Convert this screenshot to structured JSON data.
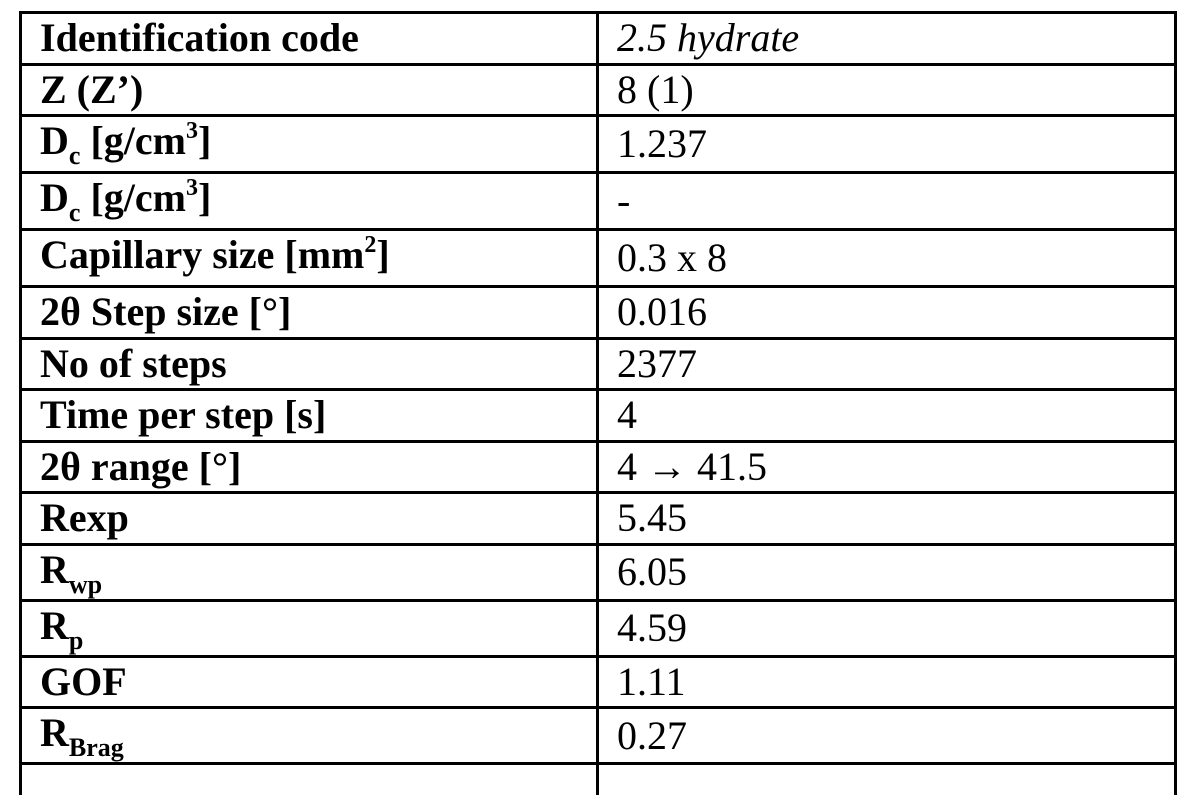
{
  "table": {
    "rows": [
      {
        "param": "Identification code",
        "value": "2.5 hydrate"
      },
      {
        "param": "Z (Z’)",
        "value": "8 (1)"
      },
      {
        "param_main": "D",
        "param_sub": "c",
        "param_mid": " [g/cm",
        "param_sup": "3",
        "param_end": "]",
        "value": "1.237"
      },
      {
        "param_main": "D",
        "param_sub": "c",
        "param_mid": " [g/cm",
        "param_sup": "3",
        "param_end": "]",
        "value": "-"
      },
      {
        "param_main": "Capillary size [mm",
        "param_sup": "2",
        "param_end": "]",
        "value": "0.3 x 8"
      },
      {
        "param": "2θ Step size [°]",
        "value": "0.016"
      },
      {
        "param": "No of steps",
        "value": "2377"
      },
      {
        "param": "Time per step [s]",
        "value": "4"
      },
      {
        "param": "2θ range [°]",
        "value": "4 → 41.5"
      },
      {
        "param": "Rexp",
        "value": "5.45"
      },
      {
        "param_main": "R",
        "param_sub": "wp",
        "value": "6.05"
      },
      {
        "param_main": "R",
        "param_sub": "p",
        "value": "4.59"
      },
      {
        "param": "GOF",
        "value": "1.11"
      },
      {
        "param_main": "R",
        "param_sub": "Brag",
        "value": "0.27"
      }
    ]
  }
}
